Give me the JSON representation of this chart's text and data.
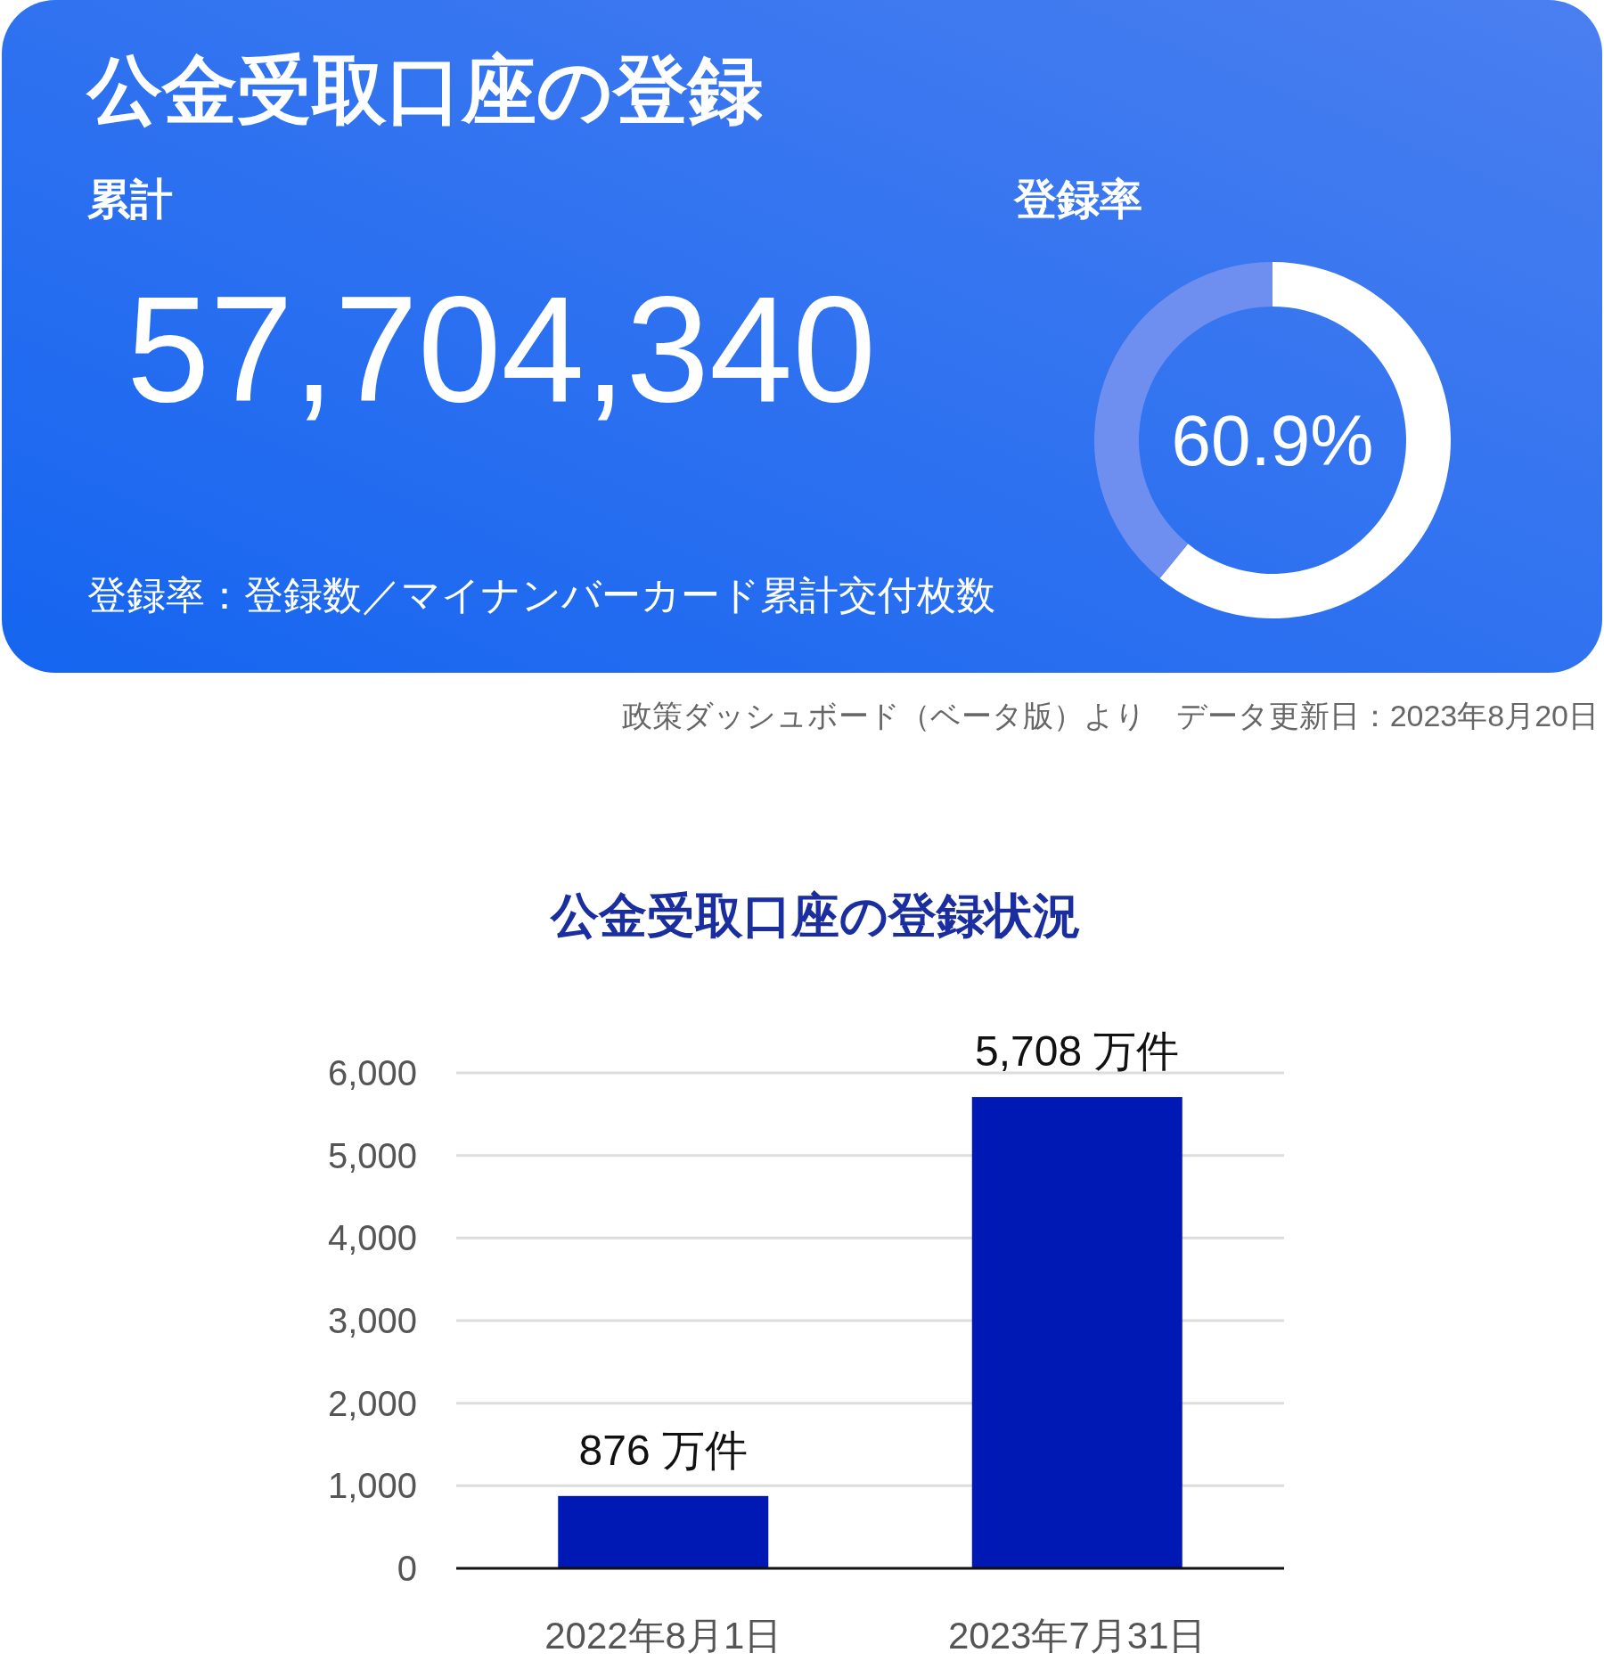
{
  "chart_data": [
    {
      "type": "donut",
      "title": "公金受取口座の登録",
      "categories": [
        null,
        null
      ],
      "values": [
        60.9,
        39.1
      ],
      "colors": [
        "#ffffff",
        "#6f8ff0"
      ],
      "value_labels": [
        "60.9%",
        null
      ],
      "annotations": [
        "累計",
        "57,704,340",
        "登録率",
        "登録率：登録数／マイナンバーカード累計交付枚数",
        "政策ダッシュボード（ベータ版）より　データ更新日：2023年8月20日"
      ]
    },
    {
      "type": "bar",
      "title": "公金受取口座の登録状況",
      "categories": [
        "2022年8月1日",
        "2023年7月31日"
      ],
      "values": [
        876,
        5708
      ],
      "color": "#0019b4",
      "value_labels": [
        "876 万件",
        "5,708 万件"
      ],
      "ylim": [
        0,
        6000
      ],
      "yticks": [
        {
          "value": 0,
          "label": "0"
        },
        {
          "value": 1000,
          "label": "1,000"
        },
        {
          "value": 2000,
          "label": "2,000"
        },
        {
          "value": 3000,
          "label": "3,000"
        },
        {
          "value": 4000,
          "label": "4,000"
        },
        {
          "value": 5000,
          "label": "5,000"
        },
        {
          "value": 6000,
          "label": "6,000"
        }
      ],
      "grid": "y"
    }
  ]
}
